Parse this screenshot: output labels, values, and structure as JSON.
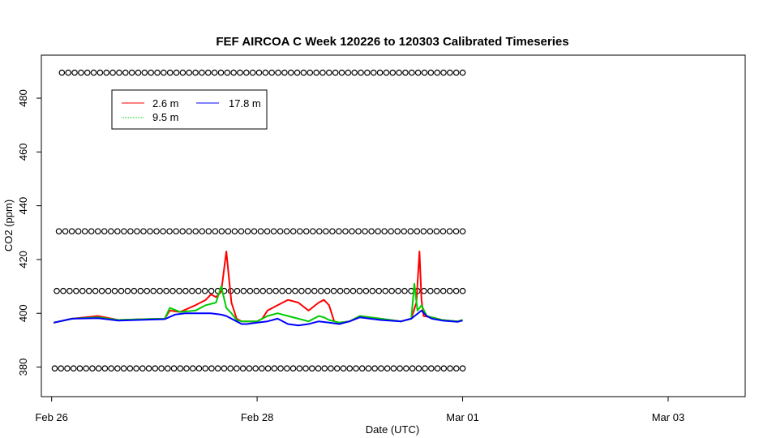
{
  "chart_data": {
    "type": "line",
    "title": "FEF AIRCOA C  Week 120226 to 120303  Calibrated Timeseries",
    "xlabel": "Date (UTC)",
    "ylabel": "CO2 (ppm)",
    "xlim_days": [
      -0.1,
      6.75
    ],
    "ylim": [
      369,
      496
    ],
    "x_ticks": [
      {
        "day": 0,
        "label": "Feb 26"
      },
      {
        "day": 2,
        "label": "Feb 28"
      },
      {
        "day": 4,
        "label": "Mar 01"
      },
      {
        "day": 6,
        "label": "Mar 03"
      }
    ],
    "y_ticks": [
      380,
      400,
      420,
      440,
      460,
      480
    ],
    "legend": {
      "placement": "top-left",
      "entries": [
        {
          "name": "2.6 m",
          "color": "#ff0000"
        },
        {
          "name": "9.5 m",
          "color": "#00cc00"
        },
        {
          "name": "17.8 m",
          "color": "#0000ff"
        }
      ]
    },
    "series": [
      {
        "name": "2.6 m",
        "color": "#ff0000",
        "x": [
          0.02,
          0.2,
          0.45,
          0.65,
          0.9,
          1.1,
          1.15,
          1.25,
          1.4,
          1.5,
          1.55,
          1.6,
          1.65,
          1.7,
          1.75,
          1.8,
          1.85,
          1.9,
          2.0,
          2.05,
          2.1,
          2.2,
          2.3,
          2.4,
          2.5,
          2.6,
          2.65,
          2.7,
          2.75,
          2.8,
          2.9,
          3.0,
          3.2,
          3.4,
          3.5,
          3.55,
          3.58,
          3.6,
          3.62,
          3.7,
          3.8,
          3.95,
          4.0
        ],
        "y": [
          396.5,
          398,
          399,
          397.5,
          397.8,
          398,
          401,
          400.5,
          403,
          405,
          407,
          406,
          408,
          423,
          404,
          398,
          397,
          397,
          397,
          398,
          401,
          403,
          405,
          404,
          401,
          404,
          405,
          403,
          397,
          396.5,
          397,
          399,
          398,
          397,
          398,
          404,
          423,
          405,
          399,
          398.5,
          397.5,
          397,
          397.5
        ]
      },
      {
        "name": "9.5 m",
        "color": "#00cc00",
        "x": [
          0.02,
          0.2,
          0.45,
          0.65,
          0.9,
          1.1,
          1.15,
          1.25,
          1.4,
          1.5,
          1.6,
          1.65,
          1.7,
          1.75,
          1.8,
          1.85,
          1.9,
          2.0,
          2.1,
          2.2,
          2.3,
          2.4,
          2.5,
          2.6,
          2.65,
          2.7,
          2.75,
          2.8,
          2.9,
          3.0,
          3.2,
          3.4,
          3.5,
          3.53,
          3.56,
          3.6,
          3.65,
          3.7,
          3.8,
          3.95,
          4.0
        ],
        "y": [
          396.5,
          398,
          398.5,
          397.5,
          397.8,
          398,
          402,
          400.5,
          401,
          403,
          404,
          410,
          402,
          400,
          397.5,
          397,
          397,
          397,
          399,
          400,
          399,
          398,
          397,
          399,
          398.5,
          397.5,
          397,
          396.5,
          397,
          399,
          398,
          397,
          398,
          411,
          401,
          403,
          399,
          398.5,
          397.5,
          397,
          397.5
        ]
      },
      {
        "name": "17.8 m",
        "color": "#0000ff",
        "x": [
          0.02,
          0.2,
          0.45,
          0.65,
          0.9,
          1.1,
          1.2,
          1.3,
          1.45,
          1.55,
          1.65,
          1.7,
          1.75,
          1.8,
          1.85,
          1.9,
          2.0,
          2.1,
          2.2,
          2.3,
          2.4,
          2.5,
          2.6,
          2.7,
          2.8,
          2.9,
          3.0,
          3.2,
          3.4,
          3.5,
          3.6,
          3.65,
          3.7,
          3.8,
          3.95,
          4.0
        ],
        "y": [
          396.5,
          398,
          398.2,
          397.3,
          397.6,
          397.8,
          399.5,
          400,
          400,
          400,
          399.5,
          399,
          398,
          397,
          396,
          396,
          396.5,
          397,
          398,
          396,
          395.5,
          396,
          397,
          396.5,
          396,
          397,
          398.5,
          397.5,
          397,
          398,
          401,
          399,
          398,
          397.3,
          396.8,
          397.3
        ]
      }
    ],
    "marker_rows": [
      {
        "y": 489.5,
        "x_start": 0.1,
        "x_end": 4.0,
        "count": 64
      },
      {
        "y": 430.5,
        "x_start": 0.07,
        "x_end": 4.0,
        "count": 63
      },
      {
        "y": 408.3,
        "x_start": 0.05,
        "x_end": 4.0,
        "count": 64
      },
      {
        "y": 379.5,
        "x_start": 0.03,
        "x_end": 4.0,
        "count": 66
      }
    ]
  }
}
